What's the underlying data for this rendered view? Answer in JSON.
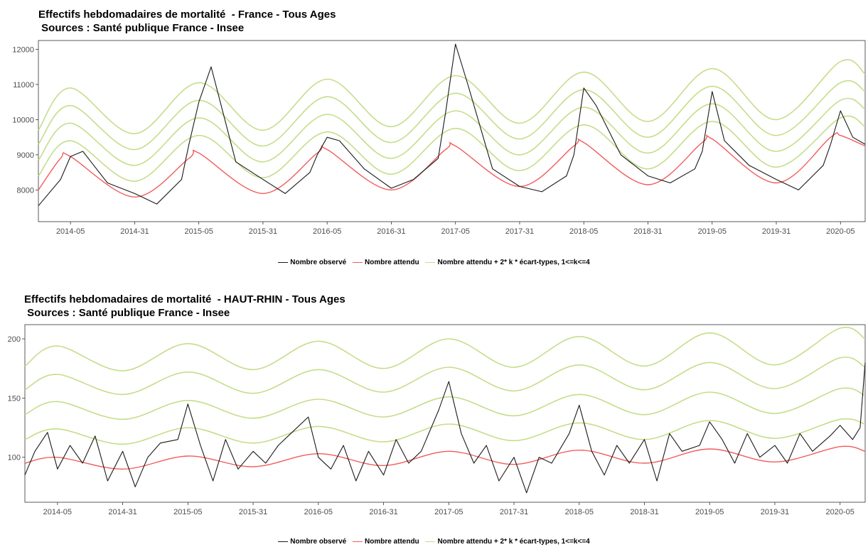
{
  "chart_data": [
    {
      "type": "line",
      "title": "Effectifs hebdomadaires de mortalité  - France - Tous Ages",
      "subtitle": " Sources : Santé publique France - Insee",
      "x_ticks": [
        "2014-05",
        "2014-31",
        "2015-05",
        "2015-31",
        "2016-05",
        "2016-31",
        "2017-05",
        "2017-31",
        "2018-05",
        "2018-31",
        "2019-05",
        "2019-31",
        "2020-05"
      ],
      "x_range": [
        "2013-44",
        "2020-15"
      ],
      "ylim": [
        7100,
        12250
      ],
      "y_ticks": [
        8000,
        9000,
        10000,
        11000,
        12000
      ],
      "grid": false,
      "legend_position": "bottom",
      "legend": [
        "Nombre observé",
        "Nombre attendu",
        "Nombre attendu + 2* k * écart-types, 1<=k<=4"
      ],
      "colors": {
        "observed": "#1a1a1a",
        "expected": "#f25c5c",
        "bands": "#c5dd8a"
      },
      "series": [
        {
          "name": "Nombre observé",
          "role": "observed",
          "x": [
            "2013-44",
            "2014-01",
            "2014-05",
            "2014-10",
            "2014-20",
            "2014-31",
            "2014-40",
            "2014-50",
            "2015-01",
            "2015-05",
            "2015-10",
            "2015-20",
            "2015-31",
            "2015-40",
            "2015-50",
            "2016-01",
            "2016-05",
            "2016-10",
            "2016-20",
            "2016-31",
            "2016-40",
            "2016-50",
            "2017-01",
            "2017-05",
            "2017-10",
            "2017-20",
            "2017-31",
            "2017-40",
            "2017-50",
            "2018-01",
            "2018-05",
            "2018-10",
            "2018-20",
            "2018-31",
            "2018-40",
            "2018-50",
            "2019-01",
            "2019-05",
            "2019-10",
            "2019-20",
            "2019-31",
            "2019-40",
            "2019-50",
            "2020-01",
            "2020-05",
            "2020-10",
            "2020-15"
          ],
          "y": [
            7550,
            8300,
            8950,
            9100,
            8200,
            7900,
            7600,
            8300,
            9300,
            10500,
            11500,
            8800,
            8300,
            7900,
            8500,
            9000,
            9500,
            9400,
            8600,
            8050,
            8300,
            8900,
            10200,
            12150,
            11000,
            8600,
            8100,
            7950,
            8400,
            9000,
            10900,
            10400,
            9000,
            8400,
            8200,
            8600,
            9100,
            10800,
            9400,
            8700,
            8300,
            8000,
            8700,
            9300,
            10250,
            9500,
            9300
          ]
        },
        {
          "name": "Nombre attendu",
          "role": "expected",
          "x": [
            "2013-44",
            "2014-01",
            "2014-05",
            "2014-31",
            "2015-01",
            "2015-05",
            "2015-31",
            "2016-01",
            "2016-05",
            "2016-31",
            "2017-01",
            "2017-05",
            "2017-31",
            "2018-01",
            "2018-05",
            "2018-31",
            "2019-01",
            "2019-05",
            "2019-31",
            "2020-01",
            "2020-05",
            "2020-15"
          ],
          "y": [
            8000,
            8900,
            8950,
            7800,
            8900,
            9050,
            7900,
            9050,
            9150,
            8000,
            9150,
            9250,
            8100,
            9250,
            9350,
            8150,
            9350,
            9450,
            8200,
            9500,
            9550,
            9250
          ]
        },
        {
          "name": "Nombre attendu + 2* k * écart-types, 1<=k<=4",
          "role": "band",
          "k": 1,
          "x": [
            "2013-44",
            "2014-05",
            "2014-31",
            "2015-05",
            "2015-31",
            "2016-05",
            "2016-31",
            "2017-05",
            "2017-31",
            "2018-05",
            "2018-31",
            "2019-05",
            "2019-31",
            "2020-05",
            "2020-15"
          ],
          "y": [
            8400,
            9400,
            8250,
            9550,
            8350,
            9650,
            8450,
            9750,
            8550,
            9850,
            8600,
            9950,
            8650,
            10050,
            9800
          ]
        },
        {
          "name": "Nombre attendu + 2* k * écart-types, 1<=k<=4",
          "role": "band",
          "k": 2,
          "x": [
            "2013-44",
            "2014-05",
            "2014-31",
            "2015-05",
            "2015-31",
            "2016-05",
            "2016-31",
            "2017-05",
            "2017-31",
            "2018-05",
            "2018-31",
            "2019-05",
            "2019-31",
            "2020-05",
            "2020-15"
          ],
          "y": [
            8850,
            9900,
            8700,
            10050,
            8800,
            10150,
            8900,
            10250,
            9000,
            10350,
            9050,
            10450,
            9100,
            10550,
            10300
          ]
        },
        {
          "name": "Nombre attendu + 2* k * écart-types, 1<=k<=4",
          "role": "band",
          "k": 3,
          "x": [
            "2013-44",
            "2014-05",
            "2014-31",
            "2015-05",
            "2015-31",
            "2016-05",
            "2016-31",
            "2017-05",
            "2017-31",
            "2018-05",
            "2018-31",
            "2019-05",
            "2019-31",
            "2020-05",
            "2020-15"
          ],
          "y": [
            9300,
            10400,
            9150,
            10550,
            9250,
            10650,
            9350,
            10750,
            9450,
            10850,
            9500,
            10950,
            9550,
            11050,
            10800
          ]
        },
        {
          "name": "Nombre attendu + 2* k * écart-types, 1<=k<=4",
          "role": "band",
          "k": 4,
          "x": [
            "2013-44",
            "2014-05",
            "2014-31",
            "2015-05",
            "2015-31",
            "2016-05",
            "2016-31",
            "2017-05",
            "2017-31",
            "2018-05",
            "2018-31",
            "2019-05",
            "2019-31",
            "2020-05",
            "2020-15"
          ],
          "y": [
            9700,
            10900,
            9600,
            11050,
            9700,
            11150,
            9800,
            11250,
            9900,
            11350,
            9950,
            11450,
            10000,
            11650,
            11300
          ]
        }
      ]
    },
    {
      "type": "line",
      "title": "Effectifs hebdomadaires de mortalité  - HAUT-RHIN - Tous Ages",
      "subtitle": " Sources : Santé publique France - Insee",
      "x_ticks": [
        "2014-05",
        "2014-31",
        "2015-05",
        "2015-31",
        "2016-05",
        "2016-31",
        "2017-05",
        "2017-31",
        "2018-05",
        "2018-31",
        "2019-05",
        "2019-31",
        "2020-05"
      ],
      "x_range": [
        "2013-44",
        "2020-15"
      ],
      "ylim": [
        62,
        212
      ],
      "y_ticks": [
        100,
        150,
        200
      ],
      "grid": false,
      "legend_position": "bottom",
      "legend": [
        "Nombre observé",
        "Nombre attendu",
        "Nombre attendu + 2* k * écart-types, 1<=k<=4"
      ],
      "colors": {
        "observed": "#1a1a1a",
        "expected": "#f25c5c",
        "bands": "#c5dd8a"
      },
      "series": [
        {
          "name": "Nombre observé",
          "role": "observed",
          "x": [
            "2013-44",
            "2013-48",
            "2014-01",
            "2014-05",
            "2014-10",
            "2014-15",
            "2014-20",
            "2014-25",
            "2014-31",
            "2014-36",
            "2014-41",
            "2014-46",
            "2015-01",
            "2015-05",
            "2015-10",
            "2015-15",
            "2015-20",
            "2015-25",
            "2015-31",
            "2015-36",
            "2015-41",
            "2015-46",
            "2016-01",
            "2016-05",
            "2016-10",
            "2016-15",
            "2016-20",
            "2016-25",
            "2016-31",
            "2016-36",
            "2016-41",
            "2016-46",
            "2017-01",
            "2017-05",
            "2017-10",
            "2017-15",
            "2017-20",
            "2017-25",
            "2017-31",
            "2017-36",
            "2017-41",
            "2017-46",
            "2018-01",
            "2018-05",
            "2018-10",
            "2018-15",
            "2018-20",
            "2018-25",
            "2018-31",
            "2018-36",
            "2018-41",
            "2018-46",
            "2019-01",
            "2019-05",
            "2019-10",
            "2019-15",
            "2019-20",
            "2019-25",
            "2019-31",
            "2019-36",
            "2019-41",
            "2019-46",
            "2020-01",
            "2020-05",
            "2020-10",
            "2020-13",
            "2020-15"
          ],
          "y": [
            85,
            105,
            121,
            90,
            110,
            95,
            118,
            80,
            105,
            75,
            100,
            112,
            115,
            145,
            110,
            80,
            115,
            90,
            105,
            95,
            110,
            120,
            134,
            100,
            90,
            110,
            80,
            105,
            85,
            115,
            95,
            105,
            140,
            164,
            120,
            95,
            110,
            80,
            100,
            70,
            100,
            95,
            120,
            144,
            105,
            85,
            110,
            95,
            115,
            80,
            120,
            105,
            110,
            130,
            115,
            95,
            120,
            100,
            110,
            95,
            120,
            105,
            118,
            127,
            115,
            125,
            180
          ]
        },
        {
          "name": "Nombre attendu",
          "role": "expected",
          "x": [
            "2013-44",
            "2014-05",
            "2014-31",
            "2015-05",
            "2015-31",
            "2016-05",
            "2016-31",
            "2017-05",
            "2017-31",
            "2018-05",
            "2018-31",
            "2019-05",
            "2019-31",
            "2020-05",
            "2020-15"
          ],
          "y": [
            95,
            100,
            90,
            101,
            92,
            103,
            93,
            105,
            94,
            106,
            95,
            107,
            96,
            109,
            105
          ]
        },
        {
          "name": "Nombre attendu + 2* k * écart-types, 1<=k<=4",
          "role": "band",
          "k": 1,
          "x": [
            "2013-44",
            "2014-05",
            "2014-31",
            "2015-05",
            "2015-31",
            "2016-05",
            "2016-31",
            "2017-05",
            "2017-31",
            "2018-05",
            "2018-31",
            "2019-05",
            "2019-31",
            "2020-05",
            "2020-15"
          ],
          "y": [
            115,
            124,
            111,
            125,
            112,
            126,
            113,
            128,
            114,
            129,
            115,
            131,
            116,
            132,
            128
          ]
        },
        {
          "name": "Nombre attendu + 2* k * écart-types, 1<=k<=4",
          "role": "band",
          "k": 2,
          "x": [
            "2013-44",
            "2014-05",
            "2014-31",
            "2015-05",
            "2015-31",
            "2016-05",
            "2016-31",
            "2017-05",
            "2017-31",
            "2018-05",
            "2018-31",
            "2019-05",
            "2019-31",
            "2020-05",
            "2020-15"
          ],
          "y": [
            136,
            147,
            132,
            148,
            133,
            149,
            134,
            151,
            135,
            153,
            136,
            155,
            137,
            158,
            152
          ]
        },
        {
          "name": "Nombre attendu + 2* k * écart-types, 1<=k<=4",
          "role": "band",
          "k": 3,
          "x": [
            "2013-44",
            "2014-05",
            "2014-31",
            "2015-05",
            "2015-31",
            "2016-05",
            "2016-31",
            "2017-05",
            "2017-31",
            "2018-05",
            "2018-31",
            "2019-05",
            "2019-31",
            "2020-05",
            "2020-15"
          ],
          "y": [
            157,
            170,
            153,
            172,
            154,
            174,
            155,
            176,
            156,
            178,
            157,
            180,
            158,
            184,
            176
          ]
        },
        {
          "name": "Nombre attendu + 2* k * écart-types, 1<=k<=4",
          "role": "band",
          "k": 4,
          "x": [
            "2013-44",
            "2014-05",
            "2014-31",
            "2015-05",
            "2015-31",
            "2016-05",
            "2016-31",
            "2017-05",
            "2017-31",
            "2018-05",
            "2018-31",
            "2019-05",
            "2019-31",
            "2020-05",
            "2020-15"
          ],
          "y": [
            177,
            194,
            173,
            196,
            174,
            198,
            175,
            200,
            176,
            202,
            177,
            205,
            178,
            209,
            200
          ]
        }
      ]
    }
  ]
}
